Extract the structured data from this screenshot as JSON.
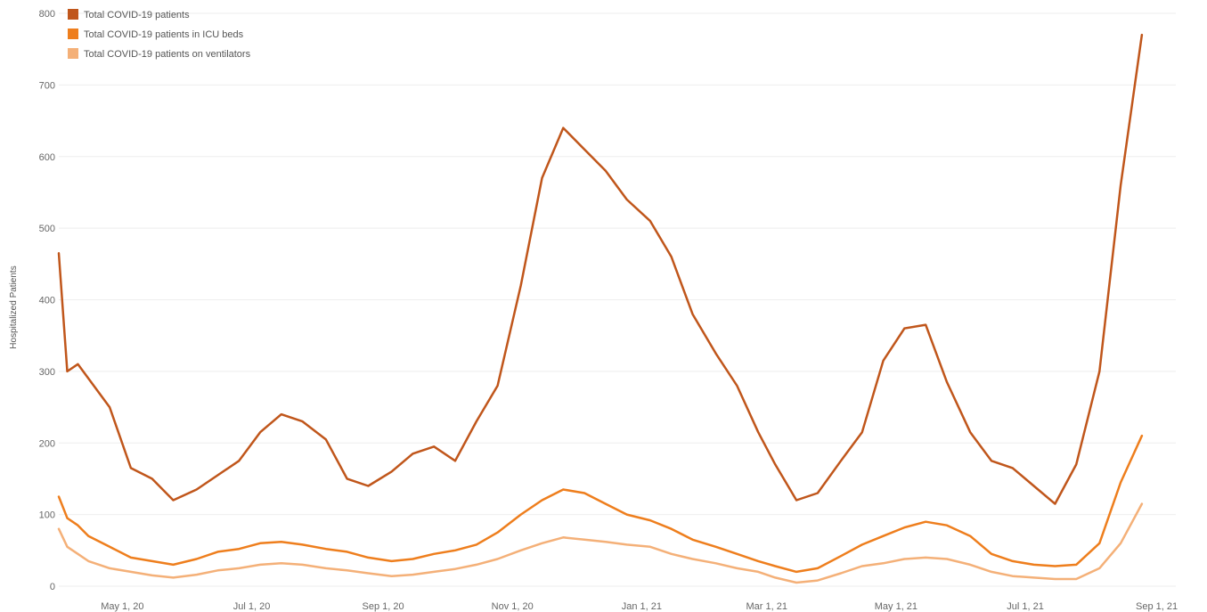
{
  "chart_data": {
    "type": "line",
    "title": "",
    "xlabel": "",
    "ylabel": "Hospitalized Patients",
    "ylim": [
      0,
      800
    ],
    "y_ticks": [
      "0",
      "100",
      "200",
      "300",
      "400",
      "500",
      "600",
      "700",
      "800"
    ],
    "x_ticks": [
      "May 1, 20",
      "Jul 1, 20",
      "Sep 1, 20",
      "Nov 1, 20",
      "Jan 1, 21",
      "Mar 1, 21",
      "May 1, 21",
      "Jul 1, 21",
      "Sep 1, 21"
    ],
    "x_tick_dates": [
      "2020-05-01",
      "2020-07-01",
      "2020-09-01",
      "2020-11-01",
      "2021-01-01",
      "2021-03-01",
      "2021-05-01",
      "2021-07-01",
      "2021-09-01"
    ],
    "grid": true,
    "legend_position": "top-left",
    "x_dates": [
      "2020-04-01",
      "2020-04-05",
      "2020-04-10",
      "2020-04-15",
      "2020-04-25",
      "2020-05-05",
      "2020-05-15",
      "2020-05-25",
      "2020-06-05",
      "2020-06-15",
      "2020-06-25",
      "2020-07-05",
      "2020-07-15",
      "2020-07-25",
      "2020-08-05",
      "2020-08-15",
      "2020-08-25",
      "2020-09-05",
      "2020-09-15",
      "2020-09-25",
      "2020-10-05",
      "2020-10-15",
      "2020-10-25",
      "2020-11-05",
      "2020-11-15",
      "2020-11-25",
      "2020-12-05",
      "2020-12-15",
      "2020-12-25",
      "2021-01-05",
      "2021-01-15",
      "2021-01-25",
      "2021-02-05",
      "2021-02-15",
      "2021-02-25",
      "2021-03-05",
      "2021-03-15",
      "2021-03-25",
      "2021-04-05",
      "2021-04-15",
      "2021-04-25",
      "2021-05-05",
      "2021-05-15",
      "2021-05-25",
      "2021-06-05",
      "2021-06-15",
      "2021-06-25",
      "2021-07-05",
      "2021-07-15",
      "2021-07-25",
      "2021-08-05",
      "2021-08-15",
      "2021-08-25"
    ],
    "series": [
      {
        "name": "Total COVID-19 patients",
        "color": "#c0561b",
        "values": [
          465,
          300,
          310,
          290,
          250,
          165,
          150,
          120,
          135,
          155,
          175,
          215,
          240,
          230,
          205,
          150,
          140,
          160,
          185,
          195,
          175,
          230,
          280,
          420,
          570,
          640,
          610,
          580,
          540,
          510,
          460,
          380,
          325,
          280,
          215,
          170,
          120,
          130,
          175,
          215,
          315,
          360,
          365,
          285,
          215,
          175,
          165,
          140,
          115,
          170,
          300,
          560,
          770
        ]
      },
      {
        "name": "Total COVID-19 patients in ICU beds",
        "color": "#ee7e1d",
        "values": [
          125,
          95,
          85,
          70,
          55,
          40,
          35,
          30,
          38,
          48,
          52,
          60,
          62,
          58,
          52,
          48,
          40,
          35,
          38,
          45,
          50,
          58,
          75,
          100,
          120,
          135,
          130,
          115,
          100,
          92,
          80,
          65,
          55,
          45,
          35,
          28,
          20,
          25,
          42,
          58,
          70,
          82,
          90,
          85,
          70,
          45,
          35,
          30,
          28,
          30,
          60,
          145,
          210
        ]
      },
      {
        "name": "Total COVID-19 patients on ventilators",
        "color": "#f4b078",
        "values": [
          80,
          55,
          45,
          35,
          25,
          20,
          15,
          12,
          16,
          22,
          25,
          30,
          32,
          30,
          25,
          22,
          18,
          14,
          16,
          20,
          24,
          30,
          38,
          50,
          60,
          68,
          65,
          62,
          58,
          55,
          45,
          38,
          32,
          25,
          20,
          12,
          5,
          8,
          18,
          28,
          32,
          38,
          40,
          38,
          30,
          20,
          14,
          12,
          10,
          10,
          25,
          60,
          115
        ]
      }
    ]
  }
}
